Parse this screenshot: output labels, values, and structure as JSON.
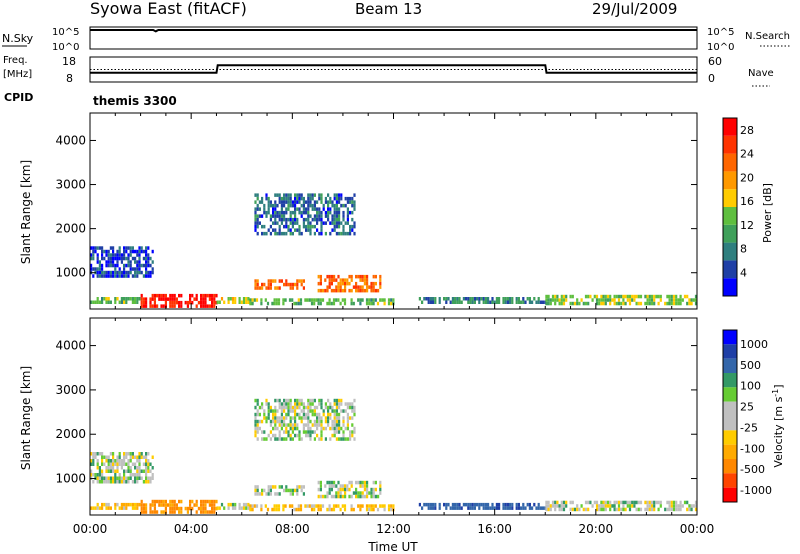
{
  "header": {
    "site": "Syowa East (fitACF)",
    "beam": "Beam 13",
    "date": "29/Jul/2009"
  },
  "top_panels": {
    "nsky_label": "N.Sky",
    "nsky_ticks": [
      "10^5",
      "10^0"
    ],
    "nsearch_label": "N.Search",
    "nsearch_ticks": [
      "10^5",
      "10^0"
    ],
    "freq_label_1": "Freq.",
    "freq_label_2": "[MHz]",
    "freq_ticks": [
      "18",
      "8"
    ],
    "nave_label": "Nave",
    "nave_ticks": [
      "60",
      "0"
    ],
    "cpid_label": "CPID",
    "cpid_value": "themis 3300"
  },
  "colors": {
    "power_scale": [
      "#0000ff",
      "#1f3fa6",
      "#2f7f7f",
      "#3fa05a",
      "#5fbf3f",
      "#ffcc00",
      "#ff9900",
      "#ff6600",
      "#ff3300",
      "#ff0000"
    ],
    "velocity_scale": [
      "#ff0000",
      "#ff4400",
      "#ff8800",
      "#ffaa00",
      "#ffcc00",
      "#c0c0c0",
      "#c0c0c0",
      "#66cc33",
      "#339966",
      "#3366aa",
      "#1f3fa6",
      "#0000ff"
    ]
  },
  "chart_data": [
    {
      "type": "line",
      "panel": "noise",
      "x_range_hours": [
        0,
        24
      ],
      "series": [
        {
          "name": "N.Sky",
          "style": "solid",
          "x": [
            0,
            2.5,
            2.6,
            2.7,
            4,
            8,
            12,
            16,
            20,
            24
          ],
          "y_log10": [
            5.0,
            5.0,
            4.6,
            5.0,
            5.0,
            5.0,
            5.0,
            5.0,
            5.0,
            5.0
          ]
        },
        {
          "name": "N.Search",
          "style": "dotted",
          "x": [
            0,
            24
          ],
          "y_log10": [
            5.0,
            5.0
          ]
        }
      ],
      "ylim_log10": [
        0,
        5
      ]
    },
    {
      "type": "line",
      "panel": "frequency",
      "x_range_hours": [
        0,
        24
      ],
      "series": [
        {
          "name": "Freq.",
          "style": "solid",
          "x": [
            0,
            0.2,
            5.0,
            5.05,
            18.0,
            18.05,
            24
          ],
          "y": [
            11.5,
            11.5,
            11.5,
            15.0,
            15.0,
            11.5,
            11.5
          ]
        },
        {
          "name": "Nave",
          "style": "dotted",
          "x": [
            0,
            0.2,
            5.0,
            5.05,
            24
          ],
          "y": [
            13.0,
            13.0,
            13.0,
            13.0,
            13.0
          ]
        }
      ],
      "ylim": [
        8,
        18
      ]
    },
    {
      "type": "heatmap",
      "panel": "power",
      "xlabel": "",
      "ylabel": "Slant Range [km]",
      "xlim": [
        0,
        24
      ],
      "ylim": [
        200,
        4600
      ],
      "y_ticks": [
        1000,
        2000,
        3000,
        4000
      ],
      "colorbar": {
        "label": "Power [dB]",
        "ticks": [
          4,
          8,
          12,
          16,
          20,
          24,
          28
        ],
        "range": [
          0,
          30
        ]
      },
      "regions": [
        {
          "t0": 0.0,
          "t1": 2.0,
          "r0": 300,
          "r1": 450,
          "level": 12
        },
        {
          "t0": 2.0,
          "t1": 5.0,
          "r0": 280,
          "r1": 520,
          "level": 28
        },
        {
          "t0": 5.0,
          "t1": 6.3,
          "r0": 300,
          "r1": 450,
          "level": 16
        },
        {
          "t0": 6.3,
          "t1": 12.0,
          "r0": 300,
          "r1": 420,
          "level": 12
        },
        {
          "t0": 6.5,
          "t1": 8.5,
          "r0": 650,
          "r1": 850,
          "level": 22
        },
        {
          "t0": 9.0,
          "t1": 11.5,
          "r0": 600,
          "r1": 950,
          "level": 22
        },
        {
          "t0": 0.0,
          "t1": 2.5,
          "r0": 900,
          "r1": 1600,
          "level": 4
        },
        {
          "t0": 6.5,
          "t1": 10.5,
          "r0": 1900,
          "r1": 2800,
          "level": 6
        },
        {
          "t0": 13.0,
          "t1": 18.0,
          "r0": 350,
          "r1": 450,
          "level": 8
        },
        {
          "t0": 18.0,
          "t1": 24.0,
          "r0": 280,
          "r1": 500,
          "level": 14
        }
      ]
    },
    {
      "type": "heatmap",
      "panel": "velocity",
      "xlabel": "Time UT",
      "ylabel": "Slant Range [km]",
      "xlim": [
        0,
        24
      ],
      "ylim": [
        200,
        4600
      ],
      "x_ticks": [
        "00:00",
        "04:00",
        "08:00",
        "12:00",
        "16:00",
        "20:00",
        "00:00"
      ],
      "y_ticks": [
        1000,
        2000,
        3000,
        4000
      ],
      "colorbar": {
        "label": "Velocity [m s^-1]",
        "ticks": [
          1000,
          500,
          100,
          25,
          -25,
          -100,
          -500,
          -1000
        ]
      },
      "regions": [
        {
          "t0": 0.0,
          "t1": 2.0,
          "r0": 300,
          "r1": 450,
          "level": -100
        },
        {
          "t0": 2.0,
          "t1": 5.0,
          "r0": 280,
          "r1": 520,
          "level": -300
        },
        {
          "t0": 5.0,
          "t1": 6.3,
          "r0": 300,
          "r1": 450,
          "level": 0
        },
        {
          "t0": 6.3,
          "t1": 12.0,
          "r0": 300,
          "r1": 420,
          "level": -100
        },
        {
          "t0": 6.5,
          "t1": 8.5,
          "r0": 650,
          "r1": 850,
          "level": 0
        },
        {
          "t0": 9.0,
          "t1": 11.5,
          "r0": 600,
          "r1": 950,
          "level": 0
        },
        {
          "t0": 0.0,
          "t1": 2.5,
          "r0": 900,
          "r1": 1600,
          "level": 0
        },
        {
          "t0": 6.5,
          "t1": 10.5,
          "r0": 1900,
          "r1": 2800,
          "level": 0
        },
        {
          "t0": 13.0,
          "t1": 18.0,
          "r0": 350,
          "r1": 450,
          "level": 200
        },
        {
          "t0": 18.0,
          "t1": 24.0,
          "r0": 280,
          "r1": 500,
          "level": 0
        }
      ]
    }
  ]
}
